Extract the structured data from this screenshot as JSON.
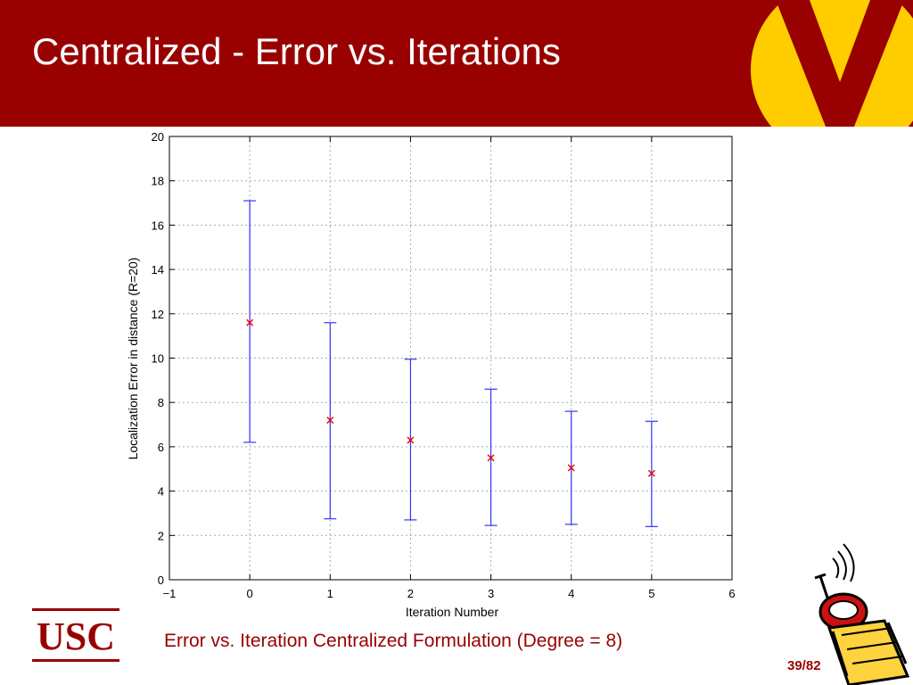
{
  "slide": {
    "title": "Centralized - Error vs. Iterations",
    "caption": "Error vs. Iteration Centralized Formulation (Degree = 8)",
    "page_number": "39/82",
    "logo_text": "USC"
  },
  "colors": {
    "header": "#990000",
    "accent_yellow": "#FFCC00",
    "errorbar": "#3333ff",
    "marker": "#ee0000"
  },
  "chart_data": {
    "type": "scatter",
    "title": "",
    "xlabel": "Iteration Number",
    "ylabel": "Localization Error in distance (R=20)",
    "xlim": [
      -1,
      6
    ],
    "ylim": [
      0,
      20
    ],
    "xticks": [
      "−1",
      "0",
      "1",
      "2",
      "3",
      "4",
      "5",
      "6"
    ],
    "yticks": [
      "0",
      "2",
      "4",
      "6",
      "8",
      "10",
      "12",
      "14",
      "16",
      "18",
      "20"
    ],
    "grid": true,
    "series": [
      {
        "marker": "x",
        "x": [
          0,
          1,
          2,
          3,
          4,
          5
        ],
        "y": [
          11.6,
          7.2,
          6.3,
          5.5,
          5.05,
          4.8
        ],
        "lower": [
          6.2,
          2.75,
          2.7,
          2.45,
          2.5,
          2.4
        ],
        "upper": [
          17.1,
          11.6,
          9.95,
          8.6,
          7.6,
          7.15
        ]
      }
    ]
  }
}
